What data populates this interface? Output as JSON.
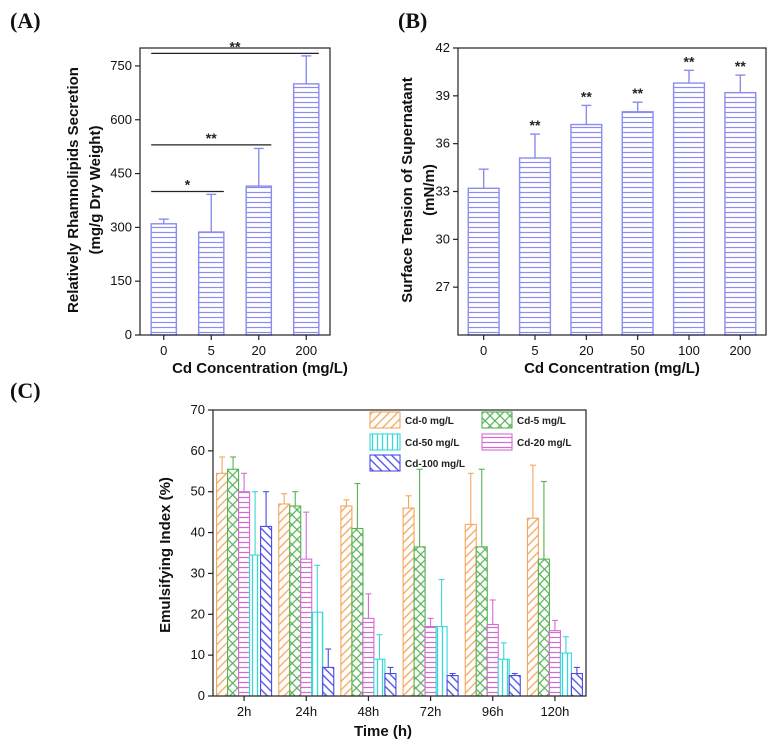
{
  "colors": {
    "bar_ab": "#8a8cf0",
    "cd0": "#f4a65a",
    "cd5": "#54b254",
    "cd50": "#37d8d8",
    "cd20": "#d66ad6",
    "cd100": "#4a4ae6",
    "axis": "#222222"
  },
  "chart_data": [
    {
      "id": "A",
      "panel_label": "(A)",
      "type": "bar",
      "title": "",
      "categories": [
        "0",
        "5",
        "20",
        "200"
      ],
      "values": [
        310,
        287,
        415,
        700
      ],
      "errors": [
        13,
        105,
        105,
        78
      ],
      "xlabel": "Cd Concentration (mg/L)",
      "ylabel_line1": "Relatively  Rhamnolipids Secretion",
      "ylabel_line2": "(mg/g Dry Weight)",
      "ylim": [
        0,
        800
      ],
      "yticks": [
        "0",
        "150",
        "300",
        "450",
        "600",
        "750"
      ],
      "significance": [
        {
          "from": "0",
          "to": "5",
          "y": 400,
          "text": "*"
        },
        {
          "from": "0",
          "to": "20",
          "y": 530,
          "text": "**"
        },
        {
          "from": "0",
          "to": "200",
          "y": 785,
          "text": "**"
        }
      ]
    },
    {
      "id": "B",
      "panel_label": "(B)",
      "type": "bar",
      "title": "",
      "categories": [
        "0",
        "5",
        "20",
        "50",
        "100",
        "200"
      ],
      "values": [
        33.2,
        35.1,
        37.2,
        38.0,
        39.8,
        39.2
      ],
      "errors": [
        1.2,
        1.5,
        1.2,
        0.6,
        0.8,
        1.1
      ],
      "xlabel": "Cd Concentration (mg/L)",
      "ylabel_line1": "Surface Tension of Supernatant",
      "ylabel_line2": "(mN/m)",
      "ylim": [
        24,
        42
      ],
      "yticks": [
        "27",
        "30",
        "33",
        "36",
        "39",
        "42"
      ],
      "annotations": [
        "",
        "**",
        "**",
        "**",
        "**",
        "**"
      ]
    },
    {
      "id": "C",
      "panel_label": "(C)",
      "type": "bar",
      "title": "",
      "categories": [
        "2h",
        "24h",
        "48h",
        "72h",
        "96h",
        "120h"
      ],
      "xlabel": "Time (h)",
      "ylabel": "Emulsifying Index (%)",
      "ylim": [
        0,
        70
      ],
      "yticks": [
        "0",
        "10",
        "20",
        "30",
        "40",
        "50",
        "60",
        "70"
      ],
      "legend_position": "top-right",
      "series": [
        {
          "name": "Cd-0 mg/L",
          "key": "cd0",
          "pattern": "diag",
          "values": [
            54.5,
            47,
            46.5,
            46,
            42,
            43.5
          ],
          "errors": [
            4,
            2.5,
            1.5,
            3,
            12.5,
            13
          ]
        },
        {
          "name": "Cd-5 mg/L",
          "key": "cd5",
          "pattern": "cross",
          "values": [
            55.5,
            46.5,
            41,
            36.5,
            36.5,
            33.5
          ],
          "errors": [
            3,
            3.5,
            11,
            19,
            19,
            19
          ]
        },
        {
          "name": "Cd-20 mg/L",
          "key": "cd20",
          "pattern": "horiz",
          "values": [
            50,
            33.5,
            19,
            17,
            17.5,
            16
          ],
          "errors": [
            4.5,
            11.5,
            6,
            2,
            6,
            2.5
          ]
        },
        {
          "name": "Cd-50 mg/L",
          "key": "cd50",
          "pattern": "vert",
          "values": [
            34.5,
            20.5,
            9,
            17,
            9,
            10.5
          ],
          "errors": [
            15.5,
            11.5,
            6,
            11.5,
            4,
            4
          ]
        },
        {
          "name": "Cd-100 mg/L",
          "key": "cd100",
          "pattern": "anti",
          "values": [
            41.5,
            7,
            5.5,
            5,
            5,
            5.5
          ],
          "errors": [
            8.5,
            4.5,
            1.5,
            0.5,
            0.5,
            1.5
          ]
        }
      ]
    }
  ]
}
